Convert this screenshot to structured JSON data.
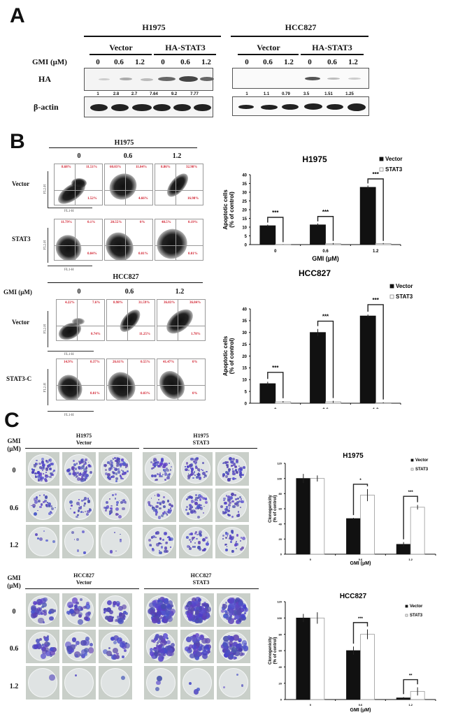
{
  "panels": {
    "A": {
      "letter": "A",
      "blots": [
        {
          "cell_line": "H1975",
          "groups": [
            "Vector",
            "HA-STAT3"
          ],
          "doses": [
            "0",
            "0.6",
            "1.2",
            "0",
            "0.6",
            "1.2"
          ],
          "rows": [
            "HA",
            "β-actin"
          ],
          "quantification": [
            "1",
            "2.8",
            "2.7",
            "7.64",
            "9.2",
            "7.77"
          ]
        },
        {
          "cell_line": "HCC827",
          "groups": [
            "Vector",
            "HA-STAT3"
          ],
          "doses": [
            "0",
            "0.6",
            "1.2",
            "0",
            "0.6",
            "1.2"
          ],
          "rows": [
            "HA",
            "β-actin"
          ],
          "quantification": [
            "1",
            "1.1",
            "0.79",
            "3.5",
            "1.51",
            "1.25"
          ]
        }
      ],
      "dose_label": "GMI  (μM)"
    },
    "B": {
      "letter": "B",
      "flow": [
        {
          "cell_line": "H1975",
          "doses": [
            "0",
            "0.6",
            "1.2"
          ],
          "rows": [
            {
              "label": "Vector",
              "plots": [
                {
                  "ul": "8.68%",
                  "ur": "11.51%",
                  "lr": "1.52%"
                },
                {
                  "ul": "60.03%",
                  "ur": "11.04%",
                  "lr": "4.66%"
                },
                {
                  "ul": "8.86%",
                  "ur": "32.98%",
                  "lr": "16.98%"
                }
              ]
            },
            {
              "label": "STAT3",
              "plots": [
                {
                  "ul": "11.79%",
                  "ur": "0.1%",
                  "lr": "0.04%"
                },
                {
                  "ul": "20.55%",
                  "ur": "0%",
                  "lr": "0.01%"
                },
                {
                  "ul": "48.5%",
                  "ur": "0.19%",
                  "lr": "0.01%"
                }
              ]
            }
          ]
        },
        {
          "cell_line": "HCC827",
          "dose_label": "GMI (μM)",
          "doses": [
            "0",
            "0.6",
            "1.2"
          ],
          "rows": [
            {
              "label": "Vector",
              "plots": [
                {
                  "ul": "4.22%",
                  "ur": "7.6%",
                  "lr": "0.74%"
                },
                {
                  "ul": "8.98%",
                  "ur": "31.59%",
                  "lr": "11.25%"
                },
                {
                  "ul": "36.83%",
                  "ur": "36.84%",
                  "lr": "1.78%"
                }
              ]
            },
            {
              "label": "STAT3-C",
              "plots": [
                {
                  "ul": "14.9%",
                  "ur": "0.37%",
                  "lr": "0.01%"
                },
                {
                  "ul": "26.61%",
                  "ur": "0.55%",
                  "lr": "0.03%"
                },
                {
                  "ul": "41.47%",
                  "ur": "0%",
                  "lr": "0%"
                }
              ]
            }
          ]
        }
      ],
      "axis_x": "FL1-H",
      "axis_y": "FL2-H"
    },
    "C": {
      "letter": "C",
      "dose_label_1": "GMI",
      "dose_label_2": "(μM)",
      "doses": [
        "0",
        "0.6",
        "1.2"
      ],
      "blocks": [
        {
          "left_title_1": "H1975",
          "left_title_2": "Vector",
          "right_title_1": "H1975",
          "right_title_2": "STAT3"
        },
        {
          "left_title_1": "HCC827",
          "left_title_2": "Vector",
          "right_title_1": "HCC827",
          "right_title_2": "STAT3"
        }
      ]
    }
  },
  "chart_data": [
    {
      "type": "bar",
      "title": "H1975",
      "xlabel": "GMI (μM)",
      "ylabel": "Apoptotic cells (% of control)",
      "categories": [
        "0",
        "0.6",
        "1.2"
      ],
      "ylim": [
        0,
        40
      ],
      "yticks": [
        0,
        5,
        10,
        15,
        20,
        25,
        30,
        35,
        40
      ],
      "series": [
        {
          "name": "Vector",
          "values": [
            10.8,
            11.3,
            32.8
          ],
          "errors": [
            0.6,
            0.8,
            1.0
          ],
          "color": "#111111"
        },
        {
          "name": "STAT3",
          "values": [
            0.1,
            0.5,
            0.6
          ],
          "errors": [
            0.1,
            0.4,
            0.3
          ],
          "color": "#ffffff"
        }
      ],
      "annotations": [
        "***",
        "***",
        "***"
      ],
      "legend_position": "top-right"
    },
    {
      "type": "bar",
      "title": "HCC827",
      "xlabel": "GMI (μM)",
      "ylabel": "Apoptotic cells (% of control)",
      "categories": [
        "0",
        "0.6",
        "1.2"
      ],
      "ylim": [
        0,
        40
      ],
      "yticks": [
        0,
        5,
        10,
        15,
        20,
        25,
        30,
        35,
        40
      ],
      "series": [
        {
          "name": "Vector",
          "values": [
            8.3,
            30.0,
            37.0
          ],
          "errors": [
            0.8,
            1.5,
            0.6
          ],
          "color": "#111111"
        },
        {
          "name": "STAT3",
          "values": [
            0.6,
            0.6,
            0.2
          ],
          "errors": [
            0.3,
            0.4,
            0.2
          ],
          "color": "#ffffff"
        }
      ],
      "annotations": [
        "***",
        "***",
        "***"
      ],
      "legend_position": "top-right"
    },
    {
      "type": "bar",
      "title": "H1975",
      "xlabel": "GMI (μM)",
      "ylabel": "Clonogenicity (% of control)",
      "categories": [
        "0",
        "0.6",
        "1.2"
      ],
      "ylim": [
        0,
        120
      ],
      "yticks": [
        0,
        20,
        40,
        60,
        80,
        100,
        120
      ],
      "series": [
        {
          "name": "Vector",
          "values": [
            100,
            47,
            13
          ],
          "errors": [
            6,
            1,
            3
          ],
          "color": "#111111"
        },
        {
          "name": "STAT3",
          "values": [
            100,
            78,
            62
          ],
          "errors": [
            4,
            8,
            3
          ],
          "color": "#ffffff"
        }
      ],
      "annotations": [
        "",
        "*",
        "***"
      ],
      "legend_position": "top-right"
    },
    {
      "type": "bar",
      "title": "HCC827",
      "xlabel": "GMI (μM)",
      "ylabel": "Clonogenicity (% of control)",
      "categories": [
        "0",
        "0.6",
        "1.2"
      ],
      "ylim": [
        0,
        120
      ],
      "yticks": [
        0,
        20,
        40,
        60,
        80,
        100,
        120
      ],
      "series": [
        {
          "name": "Vector",
          "values": [
            100,
            60,
            2
          ],
          "errors": [
            5,
            5,
            1
          ],
          "color": "#111111"
        },
        {
          "name": "STAT3",
          "values": [
            100,
            80,
            10
          ],
          "errors": [
            7,
            6,
            5
          ],
          "color": "#ffffff"
        }
      ],
      "annotations": [
        "",
        "***",
        "**"
      ],
      "legend_position": "top-right"
    }
  ]
}
